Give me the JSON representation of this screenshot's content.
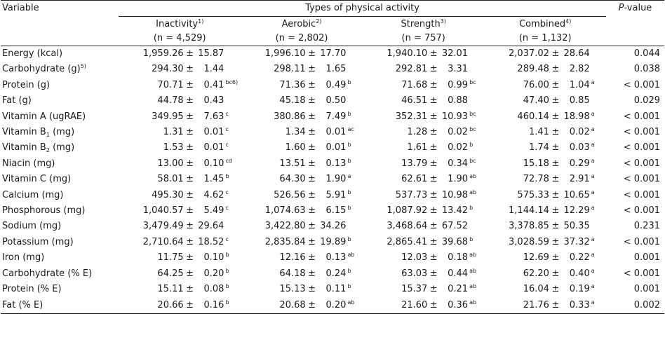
{
  "header": {
    "variable_label": "Variable",
    "group_label": "Types of physical activity",
    "p_label_italic": "P",
    "p_label_rest": "-value",
    "columns": [
      {
        "name": "Inactivity",
        "footnote": "1)",
        "n": "(n = 4,529)"
      },
      {
        "name": "Aerobic",
        "footnote": "2)",
        "n": "(n = 2,802)"
      },
      {
        "name": "Strength",
        "footnote": "3)",
        "n": "(n = 757)"
      },
      {
        "name": "Combined",
        "footnote": "4)",
        "n": "(n = 1,132)"
      }
    ]
  },
  "pm": "±",
  "rows": [
    {
      "label": "Energy (kcal)",
      "sub": "",
      "label_after": "",
      "label_sup": "",
      "cells": [
        [
          "1,959.26",
          "15.87",
          ""
        ],
        [
          "1,996.10",
          "17.70",
          ""
        ],
        [
          "1,940.10",
          "32.01",
          ""
        ],
        [
          "2,037.02",
          "28.64",
          ""
        ]
      ],
      "p": "0.044"
    },
    {
      "label": "Carbohydrate (g)",
      "sub": "",
      "label_after": "",
      "label_sup": "5)",
      "cells": [
        [
          "294.30",
          "1.44",
          ""
        ],
        [
          "298.11",
          "1.65",
          ""
        ],
        [
          "292.81",
          "3.31",
          ""
        ],
        [
          "289.48",
          "2.82",
          ""
        ]
      ],
      "p": "0.038"
    },
    {
      "label": "Protein (g)",
      "sub": "",
      "label_after": "",
      "label_sup": "",
      "cells": [
        [
          "70.71",
          "0.41",
          "bc6)"
        ],
        [
          "71.36",
          "0.49",
          "b"
        ],
        [
          "71.68",
          "0.99",
          "bc"
        ],
        [
          "76.00",
          "1.04",
          "a"
        ]
      ],
      "p": "< 0.001"
    },
    {
      "label": "Fat (g)",
      "sub": "",
      "label_after": "",
      "label_sup": "",
      "cells": [
        [
          "44.78",
          "0.43",
          ""
        ],
        [
          "45.18",
          "0.50",
          ""
        ],
        [
          "46.51",
          "0.88",
          ""
        ],
        [
          "47.40",
          "0.85",
          ""
        ]
      ],
      "p": "0.029"
    },
    {
      "label": "Vitamin A (ugRAE)",
      "sub": "",
      "label_after": "",
      "label_sup": "",
      "cells": [
        [
          "349.95",
          "7.63",
          "c"
        ],
        [
          "380.86",
          "7.49",
          "b"
        ],
        [
          "352.31",
          "10.93",
          "bc"
        ],
        [
          "460.14",
          "18.98",
          "a"
        ]
      ],
      "p": "< 0.001"
    },
    {
      "label": "Vitamin B",
      "sub": "1",
      "label_after": " (mg)",
      "label_sup": "",
      "cells": [
        [
          "1.31",
          "0.01",
          "c"
        ],
        [
          "1.34",
          "0.01",
          "ac"
        ],
        [
          "1.28",
          "0.02",
          "bc"
        ],
        [
          "1.41",
          "0.02",
          "a"
        ]
      ],
      "p": "< 0.001"
    },
    {
      "label": "Vitamin B",
      "sub": "2",
      "label_after": " (mg)",
      "label_sup": "",
      "cells": [
        [
          "1.53",
          "0.01",
          "c"
        ],
        [
          "1.60",
          "0.01",
          "b"
        ],
        [
          "1.61",
          "0.02",
          "b"
        ],
        [
          "1.74",
          "0.03",
          "a"
        ]
      ],
      "p": "< 0.001"
    },
    {
      "label": "Niacin (mg)",
      "sub": "",
      "label_after": "",
      "label_sup": "",
      "cells": [
        [
          "13.00",
          "0.10",
          "cd"
        ],
        [
          "13.51",
          "0.13",
          "b"
        ],
        [
          "13.79",
          "0.34",
          "bc"
        ],
        [
          "15.18",
          "0.29",
          "a"
        ]
      ],
      "p": "< 0.001"
    },
    {
      "label": "Vitamin C (mg)",
      "sub": "",
      "label_after": "",
      "label_sup": "",
      "cells": [
        [
          "58.01",
          "1.45",
          "b"
        ],
        [
          "64.30",
          "1.90",
          "a"
        ],
        [
          "62.61",
          "1.90",
          "ab"
        ],
        [
          "72.78",
          "2.91",
          "a"
        ]
      ],
      "p": "< 0.001"
    },
    {
      "label": "Calcium (mg)",
      "sub": "",
      "label_after": "",
      "label_sup": "",
      "cells": [
        [
          "495.30",
          "4.62",
          "c"
        ],
        [
          "526.56",
          "5.91",
          "b"
        ],
        [
          "537.73",
          "10.98",
          "ab"
        ],
        [
          "575.33",
          "10.65",
          "a"
        ]
      ],
      "p": "< 0.001"
    },
    {
      "label": "Phosphorous (mg)",
      "sub": "",
      "label_after": "",
      "label_sup": "",
      "cells": [
        [
          "1,040.57",
          "5.49",
          "c"
        ],
        [
          "1,074.63",
          "6.15",
          "b"
        ],
        [
          "1,087.92",
          "13.42",
          "b"
        ],
        [
          "1,144.14",
          "12.29",
          "a"
        ]
      ],
      "p": "< 0.001"
    },
    {
      "label": "Sodium (mg)",
      "sub": "",
      "label_after": "",
      "label_sup": "",
      "cells": [
        [
          "3,479.49",
          "29.64",
          ""
        ],
        [
          "3,422.80",
          "34.26",
          ""
        ],
        [
          "3,468.64",
          "67.52",
          ""
        ],
        [
          "3,378.85",
          "50.35",
          ""
        ]
      ],
      "p": "0.231"
    },
    {
      "label": "Potassium (mg)",
      "sub": "",
      "label_after": "",
      "label_sup": "",
      "cells": [
        [
          "2,710.64",
          "18.52",
          "c"
        ],
        [
          "2,835.84",
          "19.89",
          "b"
        ],
        [
          "2,865.41",
          "39.68",
          "b"
        ],
        [
          "3,028.59",
          "37.32",
          "a"
        ]
      ],
      "p": "< 0.001"
    },
    {
      "label": "Iron (mg)",
      "sub": "",
      "label_after": "",
      "label_sup": "",
      "cells": [
        [
          "11.75",
          "0.10",
          "b"
        ],
        [
          "12.16",
          "0.13",
          "ab"
        ],
        [
          "12.03",
          "0.18",
          "ab"
        ],
        [
          "12.69",
          "0.22",
          "a"
        ]
      ],
      "p": "0.001"
    },
    {
      "label": "Carbohydrate (% E)",
      "sub": "",
      "label_after": "",
      "label_sup": "",
      "cells": [
        [
          "64.25",
          "0.20",
          "b"
        ],
        [
          "64.18",
          "0.24",
          "b"
        ],
        [
          "63.03",
          "0.44",
          "ab"
        ],
        [
          "62.20",
          "0.40",
          "a"
        ]
      ],
      "p": "< 0.001"
    },
    {
      "label": "Protein (% E)",
      "sub": "",
      "label_after": "",
      "label_sup": "",
      "cells": [
        [
          "15.11",
          "0.08",
          "b"
        ],
        [
          "15.13",
          "0.11",
          "b"
        ],
        [
          "15.37",
          "0.21",
          "ab"
        ],
        [
          "16.04",
          "0.19",
          "a"
        ]
      ],
      "p": "0.001"
    },
    {
      "label": "Fat (% E)",
      "sub": "",
      "label_after": "",
      "label_sup": "",
      "cells": [
        [
          "20.66",
          "0.16",
          "b"
        ],
        [
          "20.68",
          "0.20",
          "ab"
        ],
        [
          "21.60",
          "0.36",
          "ab"
        ],
        [
          "21.76",
          "0.33",
          "a"
        ]
      ],
      "p": "0.002"
    }
  ]
}
